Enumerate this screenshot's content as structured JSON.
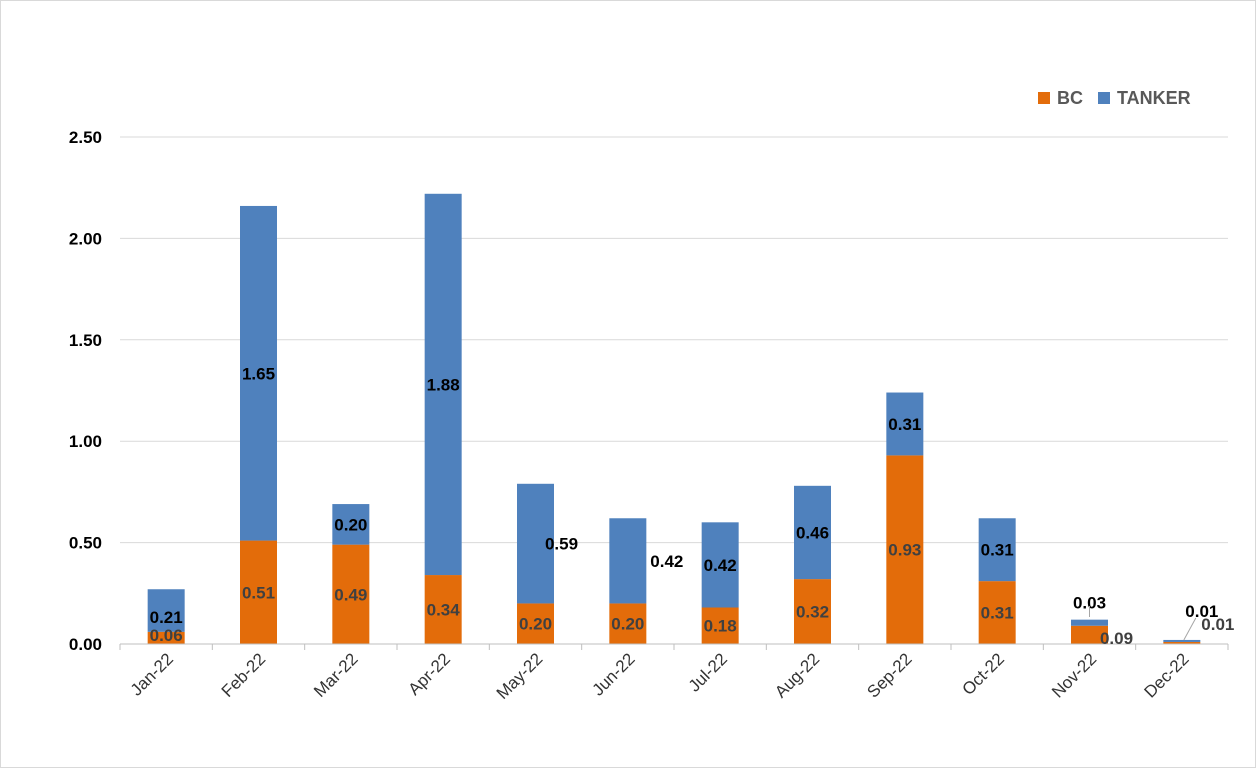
{
  "chart_data": {
    "type": "bar",
    "stacked": true,
    "categories": [
      "Jan-22",
      "Feb-22",
      "Mar-22",
      "Apr-22",
      "May-22",
      "Jun-22",
      "Jul-22",
      "Aug-22",
      "Sep-22",
      "Oct-22",
      "Nov-22",
      "Dec-22"
    ],
    "series": [
      {
        "name": "BC",
        "color": "#E36C0A",
        "values": [
          0.06,
          0.51,
          0.49,
          0.34,
          0.2,
          0.2,
          0.18,
          0.32,
          0.93,
          0.31,
          0.09,
          0.01
        ]
      },
      {
        "name": "TANKER",
        "color": "#4F81BD",
        "values": [
          0.21,
          1.65,
          0.2,
          1.88,
          0.59,
          0.42,
          0.42,
          0.46,
          0.31,
          0.31,
          0.03,
          0.01
        ]
      }
    ],
    "data_labels": {
      "BC": [
        "0.06",
        "0.51",
        "0.49",
        "0.34",
        "0.20",
        "0.20",
        "0.18",
        "0.32",
        "0.93",
        "0.31",
        "0.09",
        "0.01"
      ],
      "TANKER": [
        "0.21",
        "1.65",
        "0.20",
        "1.88",
        "0.59",
        "0.42",
        "0.42",
        "0.46",
        "0.31",
        "0.31",
        "0.03",
        "0.01"
      ]
    },
    "ylim": [
      0,
      2.5
    ],
    "yticks": [
      "0.00",
      "0.50",
      "1.00",
      "1.50",
      "2.00",
      "2.50"
    ],
    "ytick_values": [
      0,
      0.5,
      1.0,
      1.5,
      2.0,
      2.5
    ],
    "grid": true,
    "legend_position": "top-right",
    "title": "",
    "xlabel": "",
    "ylabel": ""
  }
}
